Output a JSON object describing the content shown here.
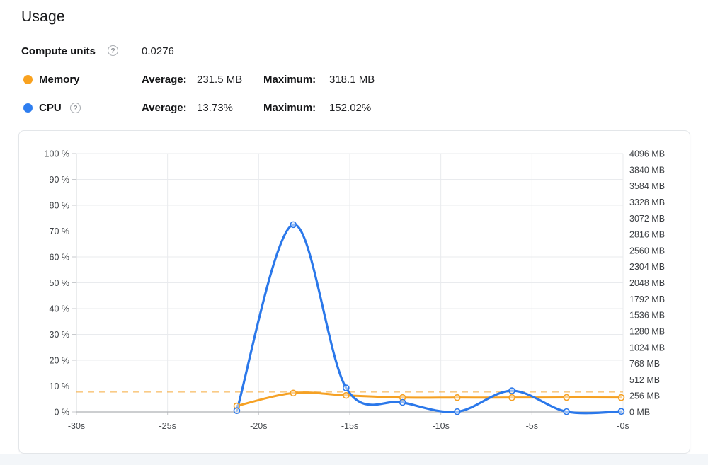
{
  "page": {
    "title": "Usage"
  },
  "icons": {
    "help_glyph": "?"
  },
  "summary": {
    "compute_units": {
      "label": "Compute units",
      "value": "0.0276"
    },
    "memory": {
      "label": "Memory",
      "color": "#f9a21f",
      "average_label": "Average:",
      "average": "231.5 MB",
      "maximum_label": "Maximum:",
      "maximum": "318.1 MB"
    },
    "cpu": {
      "label": "CPU",
      "color": "#2e7ef0",
      "average_label": "Average:",
      "average": "13.73%",
      "maximum_label": "Maximum:",
      "maximum": "152.02%"
    }
  },
  "chart_data": {
    "type": "line",
    "x_seconds": [
      -21.2,
      -18.1,
      -15.2,
      -12.1,
      -9.1,
      -6.1,
      -3.1,
      -0.1
    ],
    "series": [
      {
        "name": "Memory",
        "axis": "right",
        "unit": "MB",
        "color": "#f5a124",
        "values": [
          95,
          300,
          262,
          228,
          228,
          228,
          230,
          228
        ]
      },
      {
        "name": "CPU",
        "axis": "left",
        "unit": "%",
        "color": "#2b78ea",
        "values": [
          0.5,
          72.5,
          9.3,
          3.7,
          0.1,
          8.2,
          0.1,
          0.2
        ]
      }
    ],
    "reference_line": {
      "series": "Memory",
      "meaning": "maximum",
      "value_mb": 318.1,
      "color": "#f5a124",
      "style": "dashed"
    },
    "x_axis": {
      "range_s": [
        -30,
        0
      ],
      "tick_values": [
        -30,
        -25,
        -20,
        -15,
        -10,
        -5,
        0
      ],
      "ticks": [
        "-30s",
        "-25s",
        "-20s",
        "-15s",
        "-10s",
        "-5s",
        "-0s"
      ]
    },
    "y_left": {
      "unit": "%",
      "range": [
        0,
        100
      ],
      "tick_values": [
        0,
        10,
        20,
        30,
        40,
        50,
        60,
        70,
        80,
        90,
        100
      ],
      "ticks": [
        "0 %",
        "10 %",
        "20 %",
        "30 %",
        "40 %",
        "50 %",
        "60 %",
        "70 %",
        "80 %",
        "90 %",
        "100 %"
      ]
    },
    "y_right": {
      "unit": "MB",
      "range": [
        0,
        4096
      ],
      "tick_values": [
        0,
        256,
        512,
        768,
        1024,
        1280,
        1536,
        1792,
        2048,
        2304,
        2560,
        2816,
        3072,
        3328,
        3584,
        3840,
        4096
      ],
      "ticks": [
        "0 MB",
        "256 MB",
        "512 MB",
        "768 MB",
        "1024 MB",
        "1280 MB",
        "1536 MB",
        "1792 MB",
        "2048 MB",
        "2304 MB",
        "2560 MB",
        "2816 MB",
        "3072 MB",
        "3328 MB",
        "3584 MB",
        "3840 MB",
        "4096 MB"
      ]
    },
    "grid": true,
    "legend_position": "above-chart"
  }
}
